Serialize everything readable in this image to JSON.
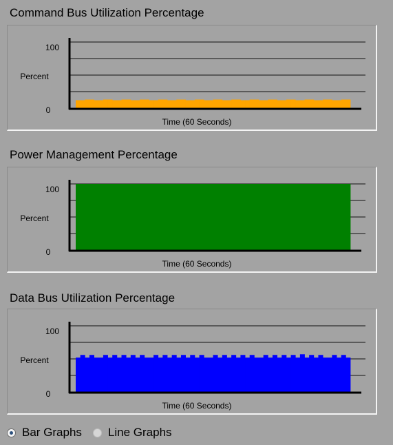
{
  "panels": [
    {
      "title": "Command Bus Utilization Percentage",
      "y_top_label": "100",
      "y_mid_label": "Percent",
      "y_bottom_label": "0",
      "x_label": "Time (60 Seconds)",
      "color": "#ffa500"
    },
    {
      "title": "Power Management Percentage",
      "y_top_label": "100",
      "y_mid_label": "Percent",
      "y_bottom_label": "0",
      "x_label": "Time (60 Seconds)",
      "color": "#008000"
    },
    {
      "title": "Data Bus Utilization Percentage",
      "y_top_label": "100",
      "y_mid_label": "Percent",
      "y_bottom_label": "0",
      "x_label": "Time (60 Seconds)",
      "color": "#0000ff"
    }
  ],
  "graph_mode": {
    "options": [
      "Bar Graphs",
      "Line Graphs"
    ],
    "selected": "Bar Graphs"
  },
  "chart_data": [
    {
      "type": "bar",
      "title": "Command Bus Utilization Percentage",
      "xlabel": "Time (60 Seconds)",
      "ylabel": "Percent",
      "ylim": [
        0,
        100
      ],
      "grid": true,
      "series": [
        {
          "color": "#ffa500",
          "values": [
            12,
            12,
            13,
            13,
            12,
            12,
            13,
            13,
            12,
            12,
            13,
            13,
            12,
            12,
            13,
            13,
            12,
            12,
            13,
            13,
            12,
            12,
            13,
            13,
            12,
            12,
            13,
            13,
            12,
            12,
            13,
            13,
            12,
            12,
            13,
            13,
            12,
            12,
            13,
            13,
            12,
            12,
            13,
            13,
            12,
            12,
            13,
            13,
            12,
            12,
            13,
            13,
            12,
            12,
            13,
            13,
            12,
            12,
            13,
            13
          ]
        }
      ]
    },
    {
      "type": "bar",
      "title": "Power Management Percentage",
      "xlabel": "Time (60 Seconds)",
      "ylabel": "Percent",
      "ylim": [
        0,
        100
      ],
      "grid": true,
      "series": [
        {
          "color": "#008000",
          "values": [
            100,
            100,
            100,
            100,
            100,
            100,
            100,
            100,
            100,
            100,
            100,
            100,
            100,
            100,
            100,
            100,
            100,
            100,
            100,
            100,
            100,
            100,
            100,
            100,
            100,
            100,
            100,
            100,
            100,
            100,
            100,
            100,
            100,
            100,
            100,
            100,
            100,
            100,
            100,
            100,
            100,
            100,
            100,
            100,
            100,
            100,
            100,
            100,
            100,
            100,
            100,
            100,
            100,
            100,
            100,
            100,
            100,
            100,
            100,
            100
          ]
        }
      ]
    },
    {
      "type": "bar",
      "title": "Data Bus Utilization Percentage",
      "xlabel": "Time (60 Seconds)",
      "ylabel": "Percent",
      "ylim": [
        0,
        100
      ],
      "grid": true,
      "series": [
        {
          "color": "#0000ff",
          "values": [
            52,
            56,
            52,
            56,
            52,
            52,
            56,
            52,
            56,
            52,
            56,
            52,
            56,
            52,
            56,
            52,
            52,
            56,
            52,
            56,
            52,
            56,
            52,
            56,
            52,
            56,
            52,
            56,
            52,
            52,
            56,
            52,
            56,
            52,
            56,
            52,
            56,
            52,
            56,
            52,
            52,
            56,
            52,
            56,
            52,
            56,
            52,
            56,
            52,
            57,
            52,
            56,
            52,
            56,
            52,
            52,
            56,
            52,
            56,
            52
          ]
        }
      ]
    }
  ]
}
